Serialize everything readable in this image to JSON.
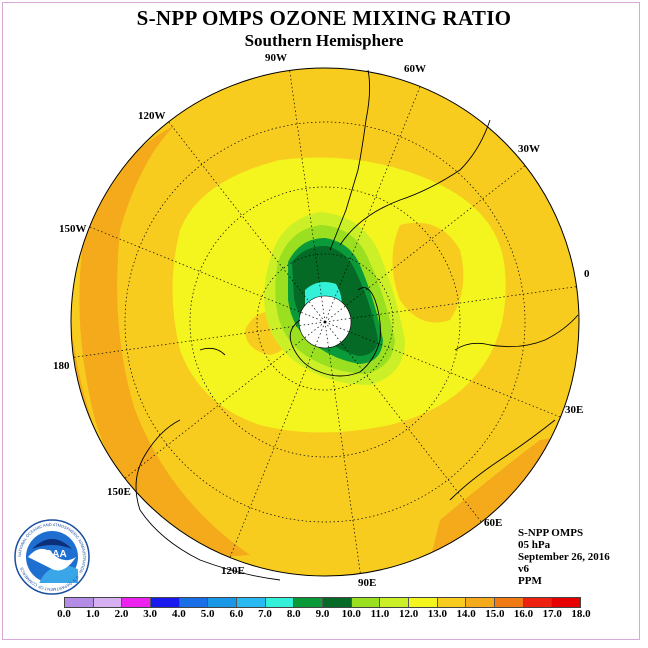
{
  "title": "S-NPP OMPS OZONE MIXING RATIO",
  "subtitle": "Southern Hemisphere",
  "longitude_labels": {
    "lon_90w": "90W",
    "lon_60w": "60W",
    "lon_120w": "120W",
    "lon_30w": "30W",
    "lon_150w": "150W",
    "lon_0": "0",
    "lon_180": "180",
    "lon_30e": "30E",
    "lon_150e": "150E",
    "lon_60e": "60E",
    "lon_120e": "120E",
    "lon_90e": "90E"
  },
  "info": {
    "instrument": "S-NPP OMPS",
    "level": "05 hPa",
    "date": "September 26, 2016",
    "version": "v6",
    "units": "PPM"
  },
  "logo": {
    "text": "NOAA",
    "ring_text": "NATIONAL OCEANIC AND ATMOSPHERIC ADMINISTRATION · U.S. DEPARTMENT OF COMMERCE"
  },
  "color_scale": {
    "ticks": [
      "0.0",
      "1.0",
      "2.0",
      "3.0",
      "4.0",
      "5.0",
      "6.0",
      "7.0",
      "8.0",
      "9.0",
      "10.0",
      "11.0",
      "12.0",
      "13.0",
      "14.0",
      "15.0",
      "16.0",
      "17.0",
      "18.0"
    ],
    "colors": [
      "#b48ce6",
      "#d6b0f0",
      "#ee22ee",
      "#1a1aee",
      "#1a6ee6",
      "#1a98e8",
      "#28baf0",
      "#33f0d8",
      "#0a9a3a",
      "#056a26",
      "#9ae020",
      "#ccf028",
      "#f4f41e",
      "#f8cc1e",
      "#f4aa1a",
      "#f07a14",
      "#ee2010",
      "#e60000",
      "#8a5a32"
    ]
  }
}
